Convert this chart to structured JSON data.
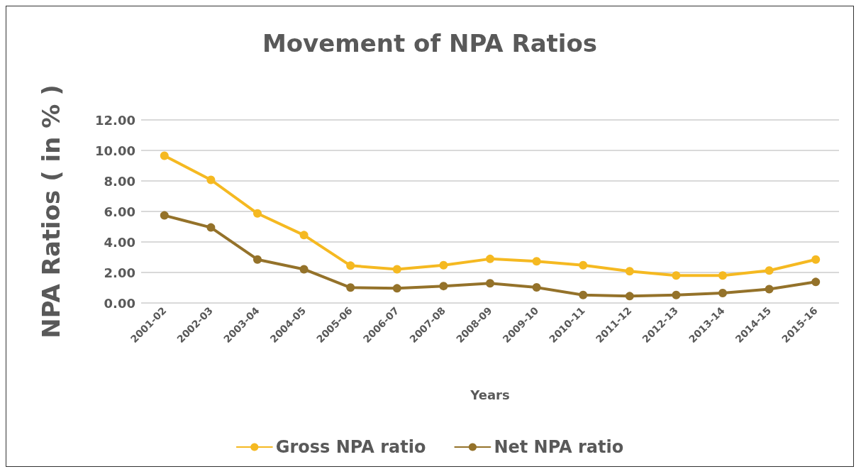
{
  "chart_data": {
    "type": "line",
    "title": "Movement of NPA Ratios",
    "xlabel": "Years",
    "ylabel": "NPA Ratios ( in % )",
    "categories": [
      "2001-02",
      "2002-03",
      "2003-04",
      "2004-05",
      "2005-06",
      "2006-07",
      "2007-08",
      "2008-09",
      "2009-10",
      "2010-11",
      "2011-12",
      "2012-13",
      "2013-14",
      "2014-15",
      "2015-16"
    ],
    "series": [
      {
        "name": "Gross NPA ratio",
        "color": "#f5b921",
        "values": [
          9.65,
          8.07,
          5.87,
          4.45,
          2.45,
          2.21,
          2.48,
          2.89,
          2.73,
          2.48,
          2.08,
          1.8,
          1.8,
          2.13,
          2.85
        ]
      },
      {
        "name": "Net NPA ratio",
        "color": "#94722a",
        "values": [
          5.74,
          4.95,
          2.85,
          2.21,
          1.01,
          0.96,
          1.11,
          1.29,
          1.02,
          0.52,
          0.45,
          0.52,
          0.65,
          0.91,
          1.38
        ]
      }
    ],
    "ylim": [
      0,
      12
    ],
    "yticks": [
      {
        "value": 0,
        "label": "0.00"
      },
      {
        "value": 2,
        "label": "2.00"
      },
      {
        "value": 4,
        "label": "4.00"
      },
      {
        "value": 6,
        "label": "6.00"
      },
      {
        "value": 8,
        "label": "8.00"
      },
      {
        "value": 10,
        "label": "10.00"
      },
      {
        "value": 12,
        "label": "12.00"
      }
    ],
    "grid": "y",
    "legend": "bottom",
    "marker": "circle",
    "line_style": "solid"
  }
}
